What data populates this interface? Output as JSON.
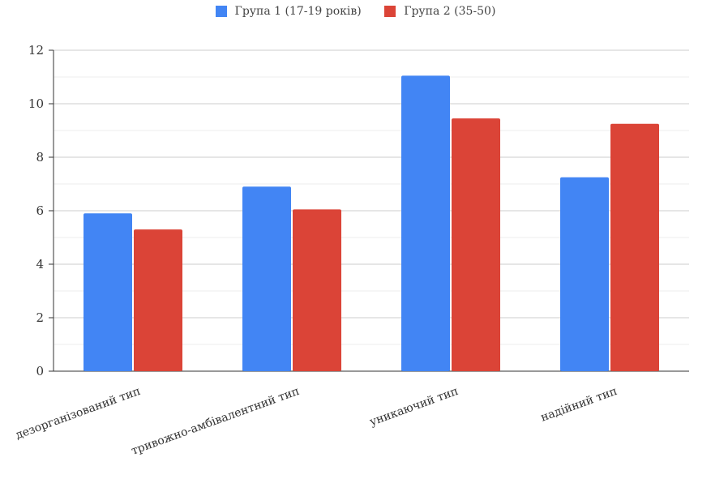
{
  "chart_data": {
    "type": "bar",
    "categories": [
      "дезорганізований тип",
      "тривожно-амбівалентний тип",
      "уникаючий тип",
      "надійний тип"
    ],
    "series": [
      {
        "name": "Група 1 (17-19 років)",
        "values": [
          5.9,
          6.9,
          11.05,
          7.25
        ],
        "color": "#4285f4"
      },
      {
        "name": "Група 2 (35-50)",
        "values": [
          5.3,
          6.05,
          9.45,
          9.25
        ],
        "color": "#db4437"
      }
    ],
    "yticks": [
      0,
      2,
      4,
      6,
      8,
      10,
      12
    ],
    "ylim": [
      0,
      12
    ],
    "grid": true,
    "legend_position": "top"
  }
}
